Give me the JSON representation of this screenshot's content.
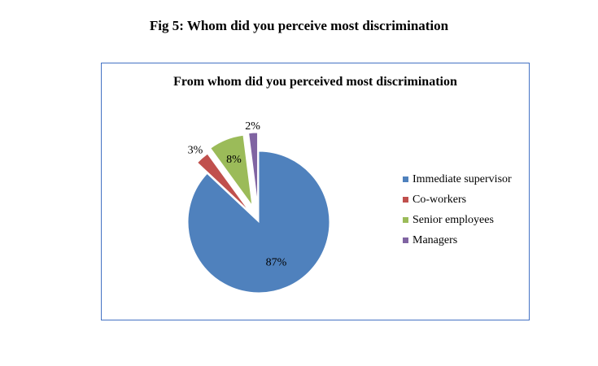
{
  "figure_caption": "Fig 5: Whom did you perceive most discrimination",
  "chart_data": {
    "type": "pie",
    "title": "From whom did you perceived most discrimination",
    "categories": [
      "Immediate supervisor",
      "Co-workers",
      "Senior employees",
      "Managers"
    ],
    "values": [
      87,
      3,
      8,
      2
    ],
    "labels": [
      "87%",
      "3%",
      "8%",
      "2%"
    ],
    "colors": [
      "#4f81bd",
      "#c0504d",
      "#9bbb59",
      "#8064a2"
    ],
    "exploded": true,
    "legend_position": "right"
  }
}
